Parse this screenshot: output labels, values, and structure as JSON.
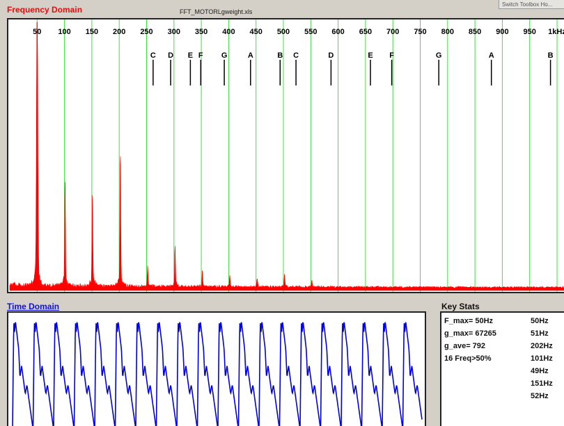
{
  "window": {
    "freq_title": "Frequency Domain",
    "filename": "FFT_MOTORLgweight.xls",
    "toolbox_label": "Switch Toolbox Ho...",
    "time_title": "Time Domain",
    "stats_title": "Key Stats"
  },
  "colors": {
    "spectrum": "#ff0000",
    "grid": "#40e040",
    "time_signal": "#0000e0",
    "note_marker": "#000000"
  },
  "chart_data": [
    {
      "type": "line",
      "title": "Frequency Domain",
      "xlim": [
        0,
        1000
      ],
      "grid_x": [
        50,
        100,
        150,
        200,
        250,
        300,
        350,
        400,
        450,
        500,
        550,
        600,
        650,
        700,
        750,
        800,
        850,
        900,
        950,
        1000
      ],
      "tick_labels": [
        "50",
        "100",
        "150",
        "200",
        "250",
        "300",
        "350",
        "400",
        "450",
        "500",
        "550",
        "600",
        "650",
        "700",
        "750",
        "800",
        "850",
        "900",
        "950",
        "1kHz"
      ],
      "note_markers": [
        {
          "note": "C",
          "freq": 262
        },
        {
          "note": "D",
          "freq": 294
        },
        {
          "note": "E",
          "freq": 330
        },
        {
          "note": "F",
          "freq": 349
        },
        {
          "note": "G",
          "freq": 392
        },
        {
          "note": "A",
          "freq": 440
        },
        {
          "note": "B",
          "freq": 494
        },
        {
          "note": "C",
          "freq": 523
        },
        {
          "note": "D",
          "freq": 587
        },
        {
          "note": "E",
          "freq": 659
        },
        {
          "note": "F",
          "freq": 698
        },
        {
          "note": "G",
          "freq": 784
        },
        {
          "note": "A",
          "freq": 880
        },
        {
          "note": "B",
          "freq": 988
        }
      ],
      "peaks": [
        {
          "freq": 50,
          "rel": 1.0
        },
        {
          "freq": 101,
          "rel": 0.37
        },
        {
          "freq": 151,
          "rel": 0.32
        },
        {
          "freq": 202,
          "rel": 0.46
        },
        {
          "freq": 252,
          "rel": 0.07
        },
        {
          "freq": 302,
          "rel": 0.14
        },
        {
          "freq": 352,
          "rel": 0.05
        },
        {
          "freq": 402,
          "rel": 0.04
        },
        {
          "freq": 452,
          "rel": 0.03
        },
        {
          "freq": 502,
          "rel": 0.04
        },
        {
          "freq": 552,
          "rel": 0.02
        }
      ]
    },
    {
      "type": "line",
      "title": "Time Domain",
      "cycles": 20
    }
  ],
  "stats": {
    "rows": [
      {
        "label": "F_max=  50Hz",
        "value": "50Hz"
      },
      {
        "label": "g_max= 67265",
        "value": "51Hz"
      },
      {
        "label": "g_ave=  792",
        "value": "202Hz"
      },
      {
        "label": "16 Freq>50%",
        "value": "101Hz"
      },
      {
        "label": "",
        "value": "49Hz"
      },
      {
        "label": "",
        "value": "151Hz"
      },
      {
        "label": "",
        "value": "52Hz"
      }
    ]
  }
}
